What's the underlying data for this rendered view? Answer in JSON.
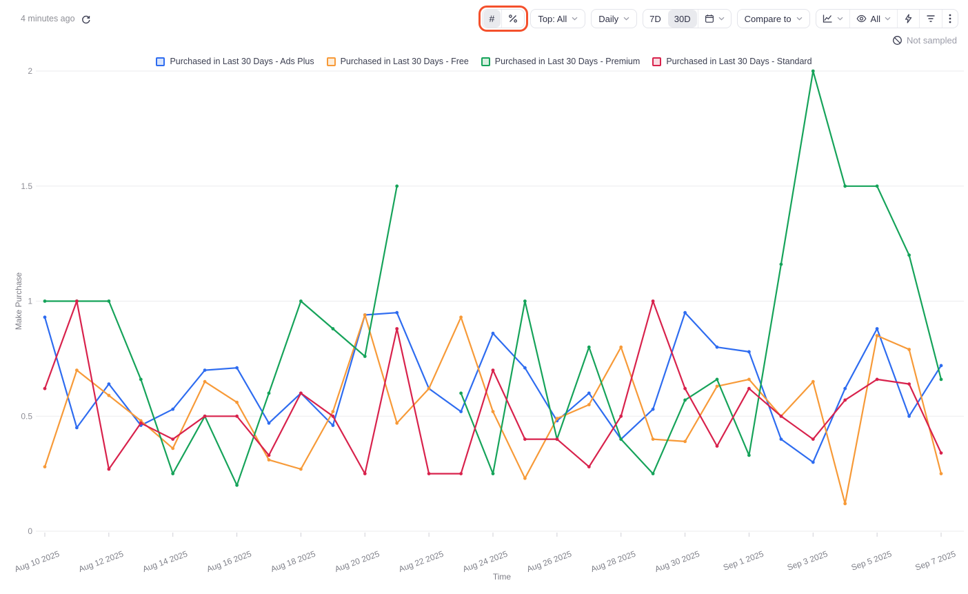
{
  "header": {
    "last_updated": "4 minutes ago",
    "sampling_status": "Not sampled"
  },
  "toolbar": {
    "value_mode": {
      "count_label": "#",
      "percent_label": "%",
      "active": "#"
    },
    "top_filter": {
      "label": "Top: All"
    },
    "interval": {
      "label": "Daily"
    },
    "date_range": {
      "d7": "7D",
      "d30": "30D",
      "active": "30D"
    },
    "compare": {
      "label": "Compare to"
    },
    "visibility": {
      "label": "All"
    },
    "icons": {
      "refresh": "circular-arrows",
      "calendar": "calendar",
      "chart_type": "line-chart",
      "eye": "eye",
      "lightning": "lightning-bolt",
      "filter": "filter-lines",
      "kebab": "⋮",
      "not_sampled": "⊘"
    },
    "annotation_highlight_color": "#f4502c"
  },
  "chart_data": {
    "type": "line",
    "xlabel": "Time",
    "ylabel": "Make Purchase",
    "ylim": [
      0,
      2
    ],
    "y_ticks": [
      0,
      0.5,
      1,
      1.5,
      2
    ],
    "x_label_every": 2,
    "grid": "horizontal-only",
    "legend_position": "top-center",
    "categories": [
      "Aug 10 2025",
      "Aug 11 2025",
      "Aug 12 2025",
      "Aug 13 2025",
      "Aug 14 2025",
      "Aug 15 2025",
      "Aug 16 2025",
      "Aug 17 2025",
      "Aug 18 2025",
      "Aug 19 2025",
      "Aug 20 2025",
      "Aug 21 2025",
      "Aug 22 2025",
      "Aug 23 2025",
      "Aug 24 2025",
      "Aug 25 2025",
      "Aug 26 2025",
      "Aug 27 2025",
      "Aug 28 2025",
      "Aug 29 2025",
      "Aug 30 2025",
      "Aug 31 2025",
      "Sep 1 2025",
      "Sep 2 2025",
      "Sep 3 2025",
      "Sep 4 2025",
      "Sep 5 2025",
      "Sep 6 2025",
      "Sep 7 2025"
    ],
    "series": [
      {
        "name": "Purchased in Last 30 Days - Ads Plus",
        "color": "#2e6cf0",
        "swatch_fill": "#d8e4fb",
        "values": [
          0.93,
          0.45,
          0.64,
          0.46,
          0.53,
          0.7,
          0.71,
          0.47,
          0.6,
          0.46,
          0.94,
          0.95,
          0.62,
          0.52,
          0.86,
          0.71,
          0.48,
          0.6,
          0.4,
          0.53,
          0.95,
          0.8,
          0.78,
          0.4,
          0.3,
          0.62,
          0.88,
          0.5,
          0.72
        ]
      },
      {
        "name": "Purchased in Last 30 Days - Free",
        "color": "#f79a38",
        "swatch_fill": "#fdeedb",
        "values": [
          0.28,
          0.7,
          0.59,
          0.48,
          0.36,
          0.65,
          0.56,
          0.31,
          0.27,
          0.52,
          0.94,
          0.47,
          0.62,
          0.93,
          0.52,
          0.23,
          0.49,
          0.55,
          0.8,
          0.4,
          0.39,
          0.63,
          0.66,
          0.5,
          0.65,
          0.12,
          0.85,
          0.79,
          0.25
        ]
      },
      {
        "name": "Purchased in Last 30 Days - Premium",
        "color": "#16a35a",
        "swatch_fill": "#d7efe0",
        "values": [
          1.0,
          1.0,
          1.0,
          0.66,
          0.25,
          0.5,
          0.2,
          0.6,
          1.0,
          0.88,
          0.76,
          1.5,
          null,
          0.6,
          0.25,
          1.0,
          0.4,
          0.8,
          0.4,
          0.25,
          0.57,
          0.66,
          0.33,
          1.16,
          2.0,
          1.5,
          1.5,
          1.2,
          0.66
        ]
      },
      {
        "name": "Purchased in Last 30 Days - Standard",
        "color": "#d8224c",
        "swatch_fill": "#f9dbe2",
        "values": [
          0.62,
          1.0,
          0.27,
          0.47,
          0.4,
          0.5,
          0.5,
          0.33,
          0.6,
          0.5,
          0.25,
          0.88,
          0.25,
          0.25,
          0.7,
          0.4,
          0.4,
          0.28,
          0.5,
          1.0,
          0.62,
          0.37,
          0.62,
          0.5,
          0.4,
          0.57,
          0.66,
          0.64,
          0.34
        ]
      }
    ]
  }
}
